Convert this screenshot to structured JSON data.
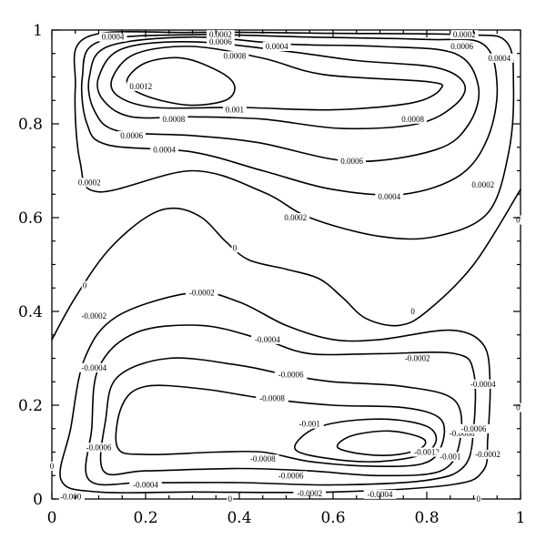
{
  "chart_data": {
    "type": "contour",
    "title": "",
    "xlabel": "",
    "ylabel": "",
    "xlim": [
      0,
      1
    ],
    "ylim": [
      0,
      1
    ],
    "x_ticks": [
      "0",
      "0.2",
      "0.4",
      "0.6",
      "0.8",
      "1"
    ],
    "y_ticks": [
      "0",
      "0.2",
      "0.4",
      "0.6",
      "0.8",
      "1"
    ],
    "levels": [
      -0.0012,
      -0.001,
      -0.0008,
      -0.0006,
      -0.0004,
      -0.0002,
      0,
      0.0002,
      0.0004,
      0.0006,
      0.0008,
      0.001,
      0.0012
    ],
    "contours": [
      {
        "level": 0.0012,
        "label": "0.0012",
        "points": [
          [
            0.16,
            0.89
          ],
          [
            0.2,
            0.93
          ],
          [
            0.28,
            0.94
          ],
          [
            0.36,
            0.91
          ],
          [
            0.39,
            0.88
          ],
          [
            0.37,
            0.85
          ],
          [
            0.29,
            0.84
          ],
          [
            0.2,
            0.86
          ]
        ]
      },
      {
        "level": 0.001,
        "label": "0.001",
        "points": [
          [
            0.13,
            0.9
          ],
          [
            0.18,
            0.95
          ],
          [
            0.3,
            0.965
          ],
          [
            0.45,
            0.94
          ],
          [
            0.58,
            0.905
          ],
          [
            0.8,
            0.89
          ],
          [
            0.83,
            0.875
          ],
          [
            0.77,
            0.845
          ],
          [
            0.6,
            0.83
          ],
          [
            0.4,
            0.835
          ],
          [
            0.22,
            0.835
          ],
          [
            0.14,
            0.86
          ]
        ]
      },
      {
        "level": 0.0008,
        "label": "0.0008",
        "points": [
          [
            0.1,
            0.9
          ],
          [
            0.15,
            0.96
          ],
          [
            0.3,
            0.975
          ],
          [
            0.5,
            0.955
          ],
          [
            0.65,
            0.935
          ],
          [
            0.82,
            0.92
          ],
          [
            0.88,
            0.885
          ],
          [
            0.86,
            0.84
          ],
          [
            0.78,
            0.8
          ],
          [
            0.62,
            0.79
          ],
          [
            0.45,
            0.81
          ],
          [
            0.3,
            0.815
          ],
          [
            0.17,
            0.815
          ],
          [
            0.11,
            0.85
          ]
        ]
      },
      {
        "level": 0.0006,
        "label": "0.0006",
        "points": [
          [
            0.08,
            0.9
          ],
          [
            0.12,
            0.965
          ],
          [
            0.3,
            0.985
          ],
          [
            0.5,
            0.97
          ],
          [
            0.7,
            0.965
          ],
          [
            0.86,
            0.95
          ],
          [
            0.91,
            0.88
          ],
          [
            0.89,
            0.8
          ],
          [
            0.82,
            0.745
          ],
          [
            0.64,
            0.72
          ],
          [
            0.44,
            0.76
          ],
          [
            0.3,
            0.775
          ],
          [
            0.14,
            0.785
          ],
          [
            0.09,
            0.83
          ]
        ]
      },
      {
        "level": 0.0004,
        "label": "0.0004",
        "points": [
          [
            0.065,
            0.9
          ],
          [
            0.1,
            0.975
          ],
          [
            0.3,
            0.99
          ],
          [
            0.55,
            0.985
          ],
          [
            0.8,
            0.98
          ],
          [
            0.92,
            0.97
          ],
          [
            0.95,
            0.88
          ],
          [
            0.93,
            0.77
          ],
          [
            0.87,
            0.69
          ],
          [
            0.75,
            0.65
          ],
          [
            0.6,
            0.66
          ],
          [
            0.45,
            0.7
          ],
          [
            0.3,
            0.74
          ],
          [
            0.12,
            0.755
          ],
          [
            0.075,
            0.8
          ]
        ]
      },
      {
        "level": 0.0002,
        "label": "0.0002",
        "points": [
          [
            0.05,
            0.88
          ],
          [
            0.075,
            0.985
          ],
          [
            0.3,
            0.995
          ],
          [
            0.6,
            0.993
          ],
          [
            0.88,
            0.99
          ],
          [
            0.97,
            0.975
          ],
          [
            0.985,
            0.88
          ],
          [
            0.975,
            0.74
          ],
          [
            0.93,
            0.61
          ],
          [
            0.82,
            0.56
          ],
          [
            0.7,
            0.56
          ],
          [
            0.55,
            0.6
          ],
          [
            0.45,
            0.655
          ],
          [
            0.3,
            0.7
          ],
          [
            0.1,
            0.655
          ],
          [
            0.06,
            0.72
          ]
        ]
      },
      {
        "level": 0,
        "label": "0",
        "open": true,
        "points": [
          [
            0,
            0.34
          ],
          [
            0.05,
            0.43
          ],
          [
            0.12,
            0.53
          ],
          [
            0.2,
            0.6
          ],
          [
            0.26,
            0.62
          ],
          [
            0.32,
            0.6
          ],
          [
            0.37,
            0.55
          ],
          [
            0.42,
            0.51
          ],
          [
            0.5,
            0.49
          ],
          [
            0.57,
            0.47
          ],
          [
            0.62,
            0.43
          ],
          [
            0.67,
            0.385
          ],
          [
            0.74,
            0.37
          ],
          [
            0.8,
            0.4
          ],
          [
            0.9,
            0.5
          ],
          [
            1,
            0.66
          ]
        ]
      },
      {
        "level": -0.0002,
        "label": "-0.0002",
        "points": [
          [
            0.02,
            0.04
          ],
          [
            0.04,
            0.15
          ],
          [
            0.07,
            0.3
          ],
          [
            0.14,
            0.39
          ],
          [
            0.3,
            0.44
          ],
          [
            0.4,
            0.42
          ],
          [
            0.5,
            0.37
          ],
          [
            0.6,
            0.34
          ],
          [
            0.7,
            0.34
          ],
          [
            0.85,
            0.36
          ],
          [
            0.92,
            0.33
          ],
          [
            0.935,
            0.25
          ],
          [
            0.93,
            0.13
          ],
          [
            0.92,
            0.06
          ],
          [
            0.85,
            0.03
          ],
          [
            0.6,
            0.015
          ],
          [
            0.3,
            0.015
          ],
          [
            0.1,
            0.015
          ]
        ]
      },
      {
        "level": -0.0004,
        "label": "-0.0004",
        "points": [
          [
            0.08,
            0.04
          ],
          [
            0.085,
            0.15
          ],
          [
            0.1,
            0.28
          ],
          [
            0.18,
            0.355
          ],
          [
            0.32,
            0.37
          ],
          [
            0.45,
            0.34
          ],
          [
            0.55,
            0.31
          ],
          [
            0.7,
            0.31
          ],
          [
            0.86,
            0.31
          ],
          [
            0.9,
            0.27
          ],
          [
            0.9,
            0.15
          ],
          [
            0.88,
            0.07
          ],
          [
            0.8,
            0.04
          ],
          [
            0.6,
            0.03
          ],
          [
            0.4,
            0.035
          ],
          [
            0.2,
            0.035
          ]
        ]
      },
      {
        "level": -0.0006,
        "label": "-0.0006",
        "points": [
          [
            0.11,
            0.06
          ],
          [
            0.115,
            0.17
          ],
          [
            0.14,
            0.26
          ],
          [
            0.25,
            0.3
          ],
          [
            0.4,
            0.285
          ],
          [
            0.5,
            0.265
          ],
          [
            0.6,
            0.25
          ],
          [
            0.75,
            0.24
          ],
          [
            0.86,
            0.21
          ],
          [
            0.87,
            0.12
          ],
          [
            0.83,
            0.06
          ],
          [
            0.7,
            0.05
          ],
          [
            0.55,
            0.06
          ],
          [
            0.4,
            0.065
          ],
          [
            0.2,
            0.06
          ]
        ]
      },
      {
        "level": -0.0008,
        "label": "-0.0008",
        "points": [
          [
            0.14,
            0.11
          ],
          [
            0.15,
            0.2
          ],
          [
            0.2,
            0.24
          ],
          [
            0.32,
            0.235
          ],
          [
            0.45,
            0.215
          ],
          [
            0.6,
            0.2
          ],
          [
            0.75,
            0.195
          ],
          [
            0.83,
            0.17
          ],
          [
            0.83,
            0.11
          ],
          [
            0.79,
            0.075
          ],
          [
            0.68,
            0.07
          ],
          [
            0.55,
            0.08
          ],
          [
            0.45,
            0.1
          ],
          [
            0.35,
            0.1
          ],
          [
            0.2,
            0.095
          ]
        ]
      },
      {
        "level": -0.001,
        "label": "-0.001",
        "points": [
          [
            0.52,
            0.105
          ],
          [
            0.55,
            0.145
          ],
          [
            0.62,
            0.165
          ],
          [
            0.72,
            0.17
          ],
          [
            0.8,
            0.155
          ],
          [
            0.82,
            0.125
          ],
          [
            0.79,
            0.095
          ],
          [
            0.7,
            0.08
          ],
          [
            0.6,
            0.085
          ]
        ]
      },
      {
        "level": -0.0012,
        "label": "-0.0012",
        "points": [
          [
            0.61,
            0.11
          ],
          [
            0.64,
            0.135
          ],
          [
            0.72,
            0.145
          ],
          [
            0.79,
            0.13
          ],
          [
            0.79,
            0.11
          ],
          [
            0.74,
            0.095
          ],
          [
            0.67,
            0.095
          ]
        ]
      }
    ],
    "contour_labels": [
      {
        "text": "0.0004",
        "x": 0.13,
        "y": 0.985
      },
      {
        "text": "0.0002",
        "x": 0.36,
        "y": 0.99
      },
      {
        "text": "0.0006",
        "x": 0.36,
        "y": 0.975
      },
      {
        "text": "0.0004",
        "x": 0.48,
        "y": 0.965
      },
      {
        "text": "0.0008",
        "x": 0.39,
        "y": 0.945
      },
      {
        "text": "0.0002",
        "x": 0.88,
        "y": 0.99
      },
      {
        "text": "0.0006",
        "x": 0.875,
        "y": 0.965
      },
      {
        "text": "0.0004",
        "x": 0.955,
        "y": 0.94
      },
      {
        "text": "0.0012",
        "x": 0.19,
        "y": 0.88
      },
      {
        "text": "0.001",
        "x": 0.39,
        "y": 0.83
      },
      {
        "text": "0.0008",
        "x": 0.26,
        "y": 0.81
      },
      {
        "text": "0.0006",
        "x": 0.17,
        "y": 0.775
      },
      {
        "text": "0.0004",
        "x": 0.24,
        "y": 0.745
      },
      {
        "text": "0.0008",
        "x": 0.77,
        "y": 0.81
      },
      {
        "text": "0.0006",
        "x": 0.64,
        "y": 0.72
      },
      {
        "text": "0.0004",
        "x": 0.72,
        "y": 0.645
      },
      {
        "text": "0.0002",
        "x": 0.08,
        "y": 0.675
      },
      {
        "text": "0.0002",
        "x": 0.52,
        "y": 0.6
      },
      {
        "text": "0.0002",
        "x": 0.92,
        "y": 0.67
      },
      {
        "text": "0",
        "x": 0.39,
        "y": 0.535
      },
      {
        "text": "0",
        "x": 0.07,
        "y": 0.455
      },
      {
        "text": "0",
        "x": 0.77,
        "y": 0.4
      },
      {
        "text": "0",
        "x": 0.995,
        "y": 0.595
      },
      {
        "text": "-0.0002",
        "x": 0.32,
        "y": 0.44
      },
      {
        "text": "-0.0002",
        "x": 0.09,
        "y": 0.39
      },
      {
        "text": "-0.0004",
        "x": 0.46,
        "y": 0.34
      },
      {
        "text": "-0.0004",
        "x": 0.09,
        "y": 0.28
      },
      {
        "text": "-0.0002",
        "x": 0.78,
        "y": 0.3
      },
      {
        "text": "-0.0006",
        "x": 0.51,
        "y": 0.265
      },
      {
        "text": "-0.0004",
        "x": 0.92,
        "y": 0.245
      },
      {
        "text": "-0.0008",
        "x": 0.47,
        "y": 0.215
      },
      {
        "text": "-0.001",
        "x": 0.55,
        "y": 0.16
      },
      {
        "text": "-0.0006",
        "x": 0.1,
        "y": 0.11
      },
      {
        "text": "-0.0008",
        "x": 0.45,
        "y": 0.085
      },
      {
        "text": "-0.0006",
        "x": 0.51,
        "y": 0.05
      },
      {
        "text": "-0.0004",
        "x": 0.2,
        "y": 0.03
      },
      {
        "text": "-0.0012",
        "x": 0.8,
        "y": 0.1
      },
      {
        "text": "-0.001",
        "x": 0.85,
        "y": 0.09
      },
      {
        "text": "-0.0008",
        "x": 0.875,
        "y": 0.14
      },
      {
        "text": "-0.0006",
        "x": 0.9,
        "y": 0.15
      },
      {
        "text": "-0.0002",
        "x": 0.93,
        "y": 0.095
      },
      {
        "text": "-0.0002",
        "x": 0.55,
        "y": 0.012
      },
      {
        "text": "-0.0004",
        "x": 0.7,
        "y": 0.01
      },
      {
        "text": "-0.000",
        "x": 0.04,
        "y": 0.005
      },
      {
        "text": "0",
        "x": 0.0,
        "y": 0.07
      },
      {
        "text": "0",
        "x": 0.38,
        "y": 0.0
      },
      {
        "text": "0",
        "x": 0.91,
        "y": 0.0
      },
      {
        "text": "0",
        "x": 0.995,
        "y": 0.195
      }
    ]
  }
}
